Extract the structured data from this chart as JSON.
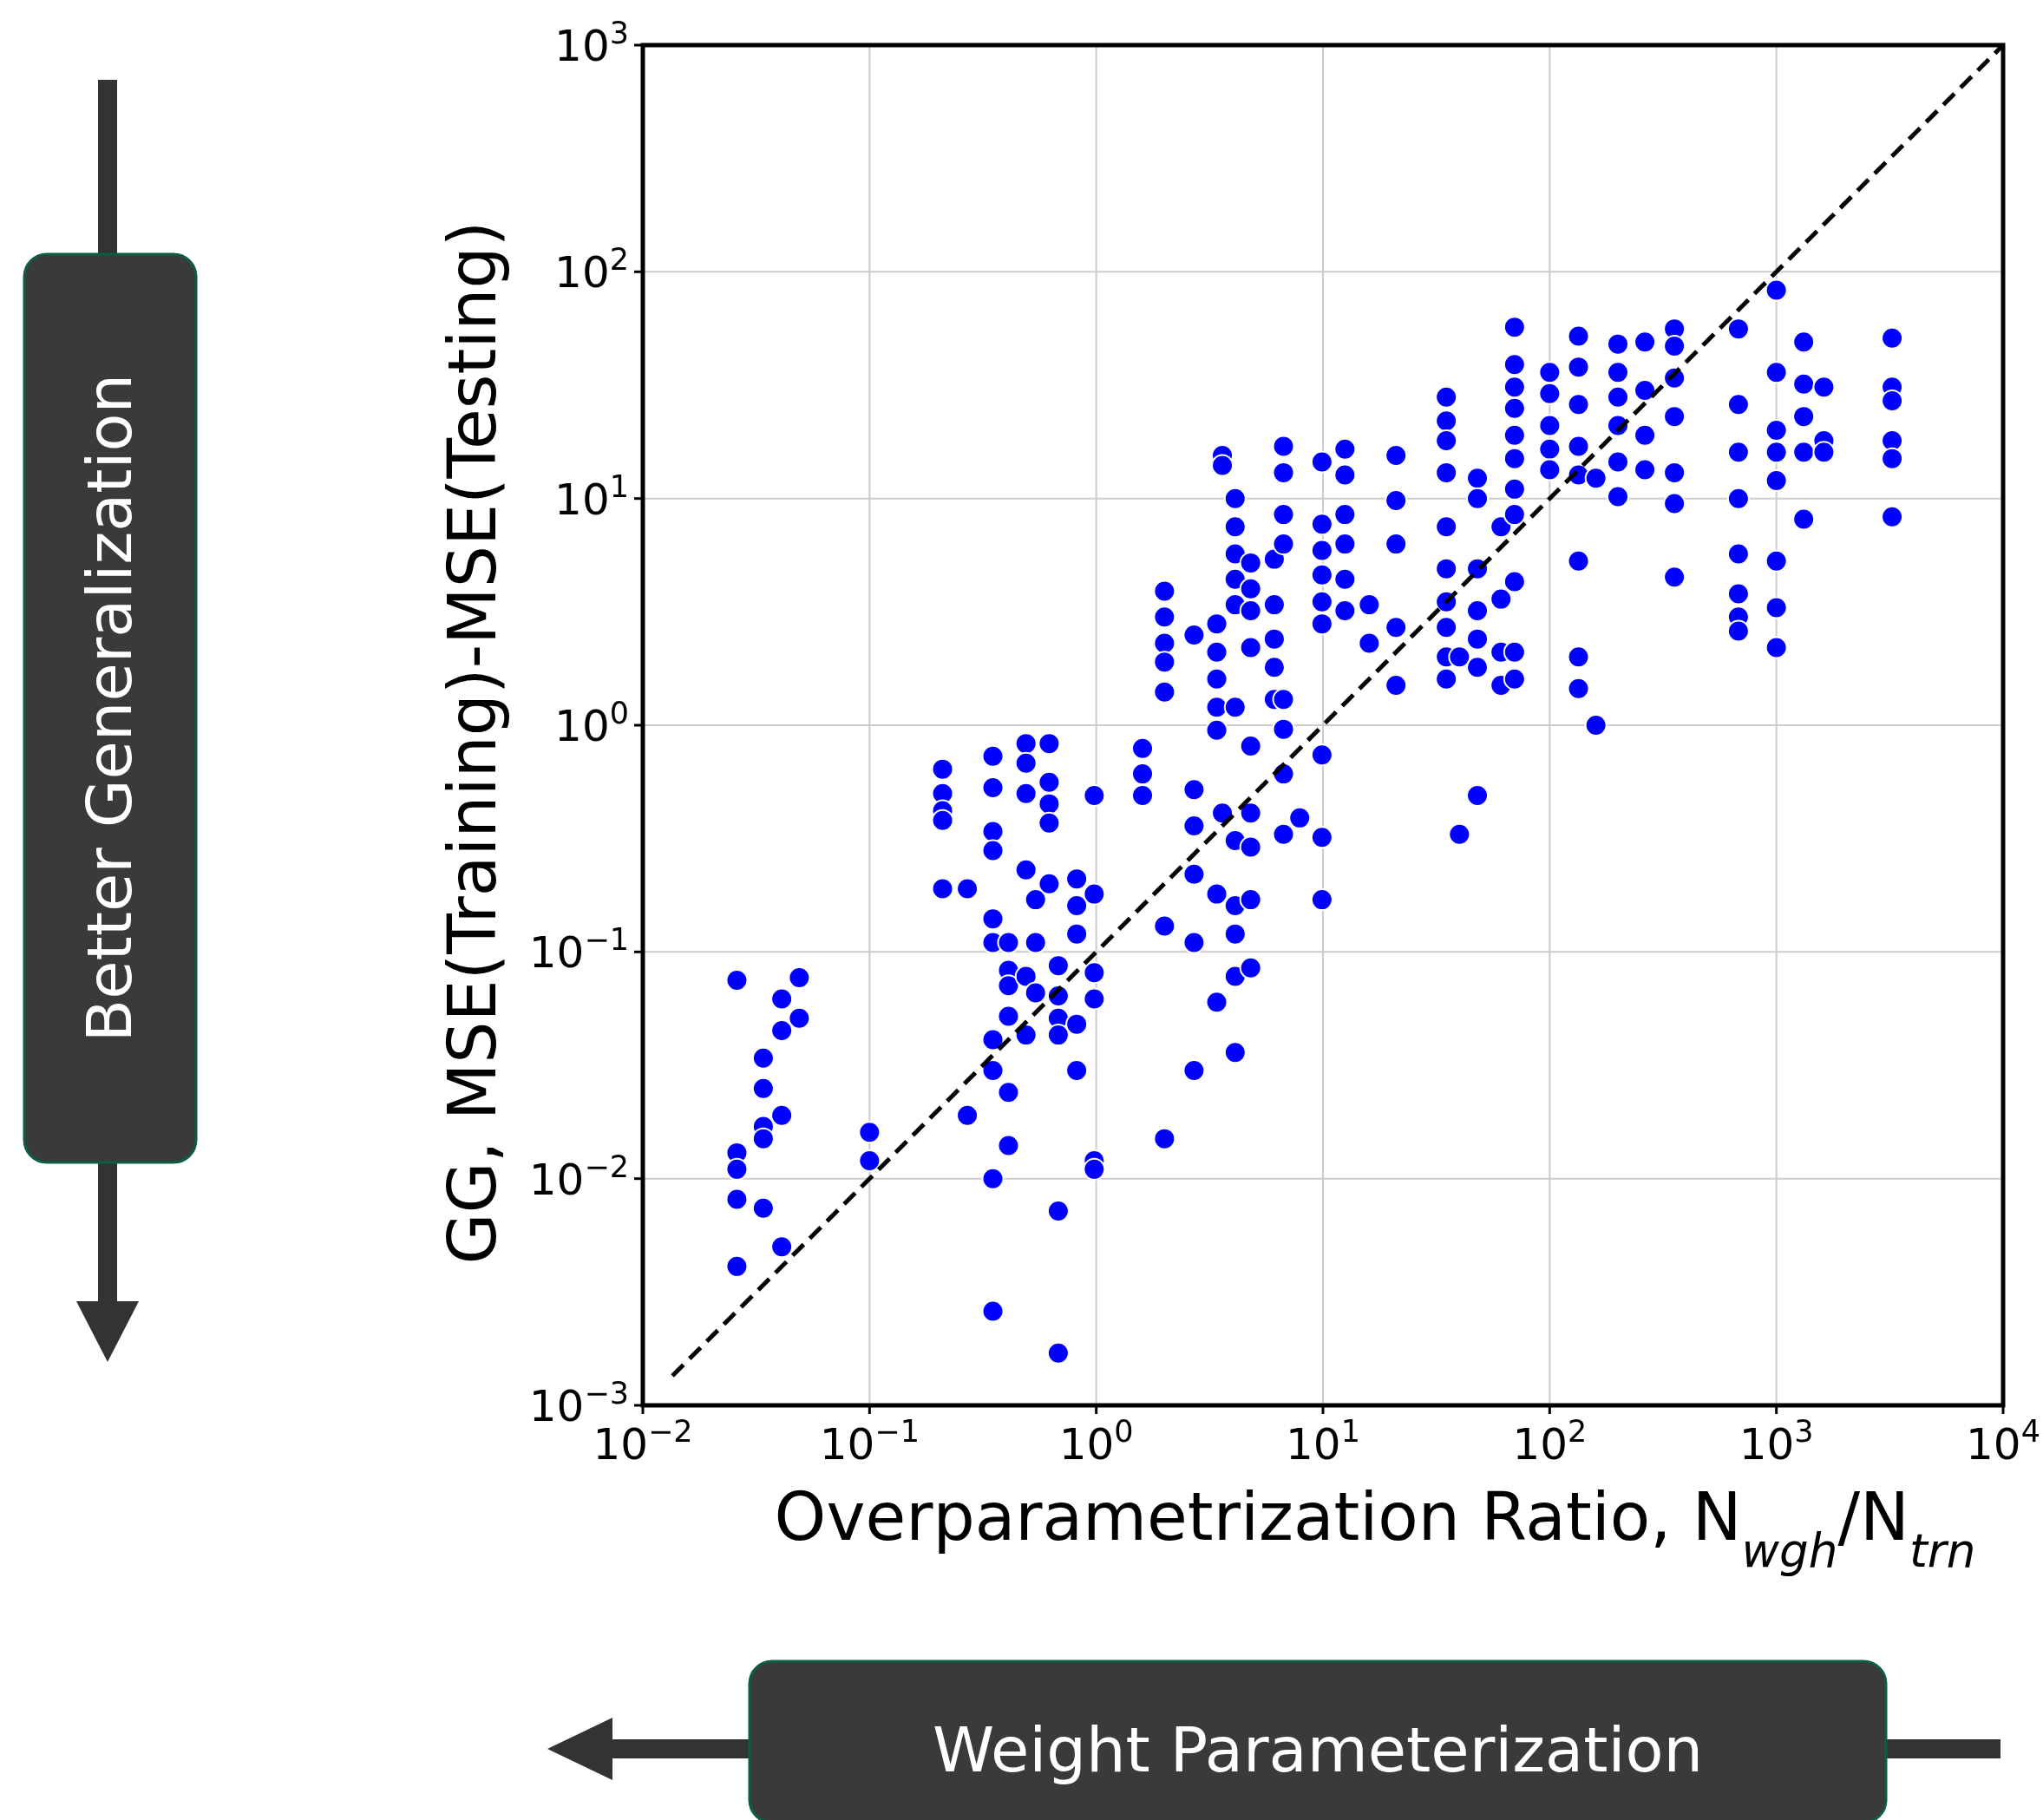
{
  "chart_data": {
    "type": "scatter",
    "xlabel": "Overparametrization Ratio, N$_{wgh}$/N$_{trn}$",
    "ylabel": "GG, MSE(Training)-MSE(Testing)",
    "annotations": [
      "Better Generalization",
      "Weight Parameterization"
    ],
    "log": "xy",
    "grid": true,
    "xlim": [
      0.01,
      10000
    ],
    "ylim": [
      0.001,
      1000
    ],
    "xticks": [
      {
        "value": 0.01,
        "label": "10$^{−2}$"
      },
      {
        "value": 0.1,
        "label": "10$^{−1}$"
      },
      {
        "value": 1,
        "label": "10$^{0}$"
      },
      {
        "value": 10,
        "label": "10$^{1}$"
      },
      {
        "value": 100,
        "label": "10$^{2}$"
      },
      {
        "value": 1000,
        "label": "10$^{3}$"
      },
      {
        "value": 10000,
        "label": "10$^{4}$"
      }
    ],
    "yticks": [
      {
        "value": 0.001,
        "label": "10$^{−3}$"
      },
      {
        "value": 0.01,
        "label": "10$^{−2}$"
      },
      {
        "value": 0.1,
        "label": "10$^{−1}$"
      },
      {
        "value": 1,
        "label": "10$^{0}$"
      },
      {
        "value": 10,
        "label": "10$^{1}$"
      },
      {
        "value": 100,
        "label": "10$^{2}$"
      },
      {
        "value": 1000,
        "label": "10$^{3}$"
      }
    ],
    "series": [
      {
        "color": "#0000ff",
        "marker": "circle",
        "x": [
          0.026,
          0.026,
          0.026,
          0.026,
          0.026,
          0.034,
          0.034,
          0.034,
          0.034,
          0.034,
          0.041,
          0.041,
          0.041,
          0.041,
          0.049,
          0.049,
          0.1,
          0.1,
          0.21,
          0.21,
          0.21,
          0.21,
          0.21,
          0.27,
          0.27,
          0.35,
          0.35,
          0.35,
          0.35,
          0.35,
          0.35,
          0.35,
          0.35,
          0.35,
          0.35,
          0.41,
          0.41,
          0.41,
          0.41,
          0.41,
          0.41,
          0.49,
          0.49,
          0.49,
          0.49,
          0.49,
          0.49,
          0.54,
          0.54,
          0.54,
          0.62,
          0.62,
          0.62,
          0.62,
          0.62,
          0.68,
          0.68,
          0.68,
          0.68,
          0.68,
          0.68,
          0.82,
          0.82,
          0.82,
          0.82,
          0.82,
          0.98,
          0.98,
          0.98,
          0.98,
          0.98,
          0.98,
          1.6,
          1.6,
          1.6,
          2.0,
          2.0,
          2.0,
          2.0,
          2.0,
          2.0,
          2.0,
          2.7,
          2.7,
          2.7,
          2.7,
          2.7,
          2.7,
          3.4,
          3.4,
          3.4,
          3.4,
          3.4,
          3.4,
          3.4,
          3.6,
          3.6,
          3.6,
          4.1,
          4.1,
          4.1,
          4.1,
          4.1,
          4.1,
          4.1,
          4.1,
          4.1,
          4.1,
          4.1,
          4.8,
          4.8,
          4.8,
          4.8,
          4.8,
          4.8,
          4.8,
          4.8,
          4.8,
          6.1,
          6.1,
          6.1,
          6.1,
          6.1,
          6.7,
          6.7,
          6.7,
          6.7,
          6.7,
          6.7,
          6.7,
          6.7,
          7.9,
          9.9,
          9.9,
          9.9,
          9.9,
          9.9,
          9.9,
          9.9,
          9.9,
          9.9,
          12.5,
          12.5,
          12.5,
          12.5,
          12.5,
          12.5,
          16,
          16,
          21,
          21,
          21,
          21,
          21,
          35,
          35,
          35,
          35,
          35,
          35,
          35,
          35,
          35,
          35,
          40,
          40,
          48,
          48,
          48,
          48,
          48,
          48,
          48,
          61,
          61,
          61,
          61,
          70,
          70,
          70,
          70,
          70,
          70,
          70,
          70,
          70,
          70,
          70,
          100,
          100,
          100,
          100,
          100,
          134,
          134,
          134,
          134,
          134,
          134,
          134,
          134,
          160,
          160,
          200,
          200,
          200,
          200,
          200,
          200,
          263,
          263,
          263,
          263,
          355,
          355,
          355,
          355,
          355,
          355,
          355,
          680,
          680,
          680,
          680,
          680,
          680,
          680,
          680,
          1000,
          1000,
          1000,
          1000,
          1000,
          1000,
          1000,
          1000,
          1320,
          1320,
          1320,
          1320,
          1320,
          1620,
          1620,
          1620,
          3240,
          3240,
          3240,
          3240,
          3240,
          3240
        ],
        "values": [
          0.075,
          0.013,
          0.011,
          0.0081,
          0.0041,
          0.034,
          0.025,
          0.017,
          0.015,
          0.0074,
          0.062,
          0.045,
          0.019,
          0.005,
          0.077,
          0.051,
          0.016,
          0.012,
          0.64,
          0.5,
          0.42,
          0.38,
          0.19,
          0.19,
          0.019,
          0.73,
          0.53,
          0.34,
          0.28,
          0.14,
          0.11,
          0.041,
          0.03,
          0.01,
          0.0026,
          0.11,
          0.083,
          0.071,
          0.052,
          0.024,
          0.014,
          0.83,
          0.68,
          0.5,
          0.23,
          0.078,
          0.043,
          0.17,
          0.11,
          0.066,
          0.83,
          0.56,
          0.45,
          0.37,
          0.2,
          0.087,
          0.064,
          0.051,
          0.043,
          0.0072,
          0.0017,
          0.21,
          0.16,
          0.12,
          0.048,
          0.03,
          0.49,
          0.18,
          0.081,
          0.062,
          0.012,
          0.011,
          0.79,
          0.61,
          0.49,
          3.9,
          3,
          2.3,
          1.9,
          1.4,
          0.13,
          0.015,
          2.5,
          0.52,
          0.36,
          0.22,
          0.11,
          0.03,
          2.8,
          2.1,
          1.6,
          1.2,
          0.95,
          0.18,
          0.06,
          15.5,
          14,
          0.41,
          10,
          7.5,
          5.7,
          4.4,
          3.4,
          1.2,
          0.31,
          0.16,
          0.12,
          0.078,
          0.036,
          5.2,
          4,
          3.2,
          2.2,
          0.81,
          0.41,
          0.29,
          0.17,
          0.085,
          5.4,
          3.4,
          2.4,
          1.8,
          1.3,
          17,
          13,
          8.5,
          6.3,
          1.3,
          0.96,
          0.61,
          0.33,
          0.39,
          14.5,
          7.7,
          5.9,
          4.6,
          3.5,
          2.8,
          0.74,
          0.32,
          0.17,
          16.5,
          12.7,
          8.5,
          6.3,
          4.4,
          3.2,
          3.4,
          2.3,
          15.5,
          9.8,
          6.3,
          2.7,
          1.5,
          28,
          22,
          18,
          13,
          7.5,
          4.9,
          3.5,
          2.7,
          2,
          1.6,
          2,
          0.33,
          12.3,
          10,
          4.9,
          3.2,
          2.4,
          1.8,
          0.49,
          7.5,
          3.6,
          2.1,
          1.5,
          57,
          39,
          31,
          25,
          19,
          15,
          11,
          8.5,
          4.3,
          2.1,
          1.6,
          36,
          29,
          21,
          16.5,
          13.4,
          52,
          38,
          26,
          17,
          12.7,
          5.3,
          2,
          1.45,
          12.3,
          1,
          48,
          36,
          28,
          21,
          14.5,
          10.2,
          49,
          30,
          19,
          13.4,
          56,
          47,
          34,
          23,
          13,
          9.5,
          4.5,
          56,
          26,
          16,
          10,
          3,
          2.6,
          3.8,
          5.7,
          83,
          36,
          20,
          16,
          12,
          5.3,
          3.3,
          2.2,
          49,
          32,
          23,
          16,
          8.1,
          31,
          18,
          16,
          51,
          31,
          27,
          18,
          15,
          8.3
        ]
      },
      {
        "type": "line",
        "color": "#000000",
        "line_style": "dashed",
        "x": [
          0.0135,
          10000
        ],
        "values": [
          0.00135,
          1000
        ]
      }
    ]
  }
}
